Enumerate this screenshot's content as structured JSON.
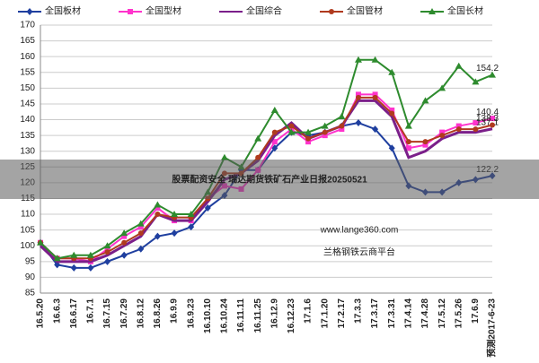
{
  "chart_data": {
    "type": "line",
    "categories": [
      "16.5.20",
      "16.6.3",
      "16.6.17",
      "16.7.1",
      "16.7.15",
      "16.7.29",
      "16.8.12",
      "16.8.26",
      "16.9.9",
      "16.9.23",
      "16.10.10",
      "16.10.24",
      "16.11.11",
      "16.11.25",
      "16.12.9",
      "16.12.23",
      "17.1.6",
      "17.1.20",
      "17.2.17",
      "17.3.3",
      "17.3.17",
      "17.3.31",
      "17.4.14",
      "17.4.28",
      "17.5.12",
      "17.5.26",
      "17.6.9",
      "预测2017-6-23"
    ],
    "series": [
      {
        "name": "全国板材",
        "color": "#1f3f9f",
        "marker": "diamond",
        "end_label": "122.2",
        "values": [
          101,
          94,
          93,
          93,
          95,
          97,
          99,
          103,
          104,
          106,
          112,
          116,
          124,
          124,
          131,
          136,
          135,
          136,
          138,
          139,
          137,
          131,
          119,
          117,
          117,
          120,
          121,
          122.2
        ]
      },
      {
        "name": "全国型材",
        "color": "#ff33cc",
        "marker": "square",
        "end_label": "140.4",
        "values": [
          101,
          96,
          96,
          95,
          99,
          103,
          106,
          112,
          108,
          108,
          115,
          119,
          118,
          124,
          133,
          137,
          133,
          135,
          137,
          148,
          148,
          143,
          131,
          132,
          136,
          138,
          139,
          140.4
        ]
      },
      {
        "name": "全国综合",
        "color": "#7b1f8a",
        "marker": "none",
        "end_label": "137.1",
        "values": [
          100,
          95,
          95,
          95,
          97,
          100,
          103,
          110,
          108,
          108,
          114,
          121,
          123,
          127,
          135,
          139,
          134,
          136,
          138,
          146,
          146,
          141,
          128,
          130,
          134,
          136,
          136,
          137.1
        ]
      },
      {
        "name": "全国管材",
        "color": "#b03a1e",
        "marker": "circle",
        "end_label": "138.3",
        "values": [
          101,
          96,
          96,
          96,
          98,
          101,
          104,
          110,
          109,
          109,
          115,
          123,
          123,
          128,
          136,
          138,
          134,
          136,
          138,
          147,
          147,
          142,
          133,
          133,
          135,
          137,
          137,
          138.3
        ]
      },
      {
        "name": "全国长材",
        "color": "#2e8b2e",
        "marker": "triangle",
        "end_label": "154.2",
        "values": [
          101,
          96,
          97,
          97,
          100,
          104,
          107,
          113,
          110,
          110,
          117,
          128,
          125,
          134,
          143,
          136,
          136,
          138,
          141,
          159,
          159,
          155,
          138,
          146,
          150,
          157,
          152,
          154.2
        ]
      }
    ],
    "ylim": [
      85,
      170
    ],
    "yticks": [
      85,
      90,
      95,
      100,
      105,
      110,
      115,
      120,
      125,
      130,
      135,
      140,
      145,
      150,
      155,
      160,
      165,
      170
    ],
    "grid": true,
    "annotations": [
      "www.lange360.com",
      "兰格钢铁云商平台"
    ],
    "banner": "股票配资安全 瑞达期货铁矿石产业日报20250521"
  }
}
